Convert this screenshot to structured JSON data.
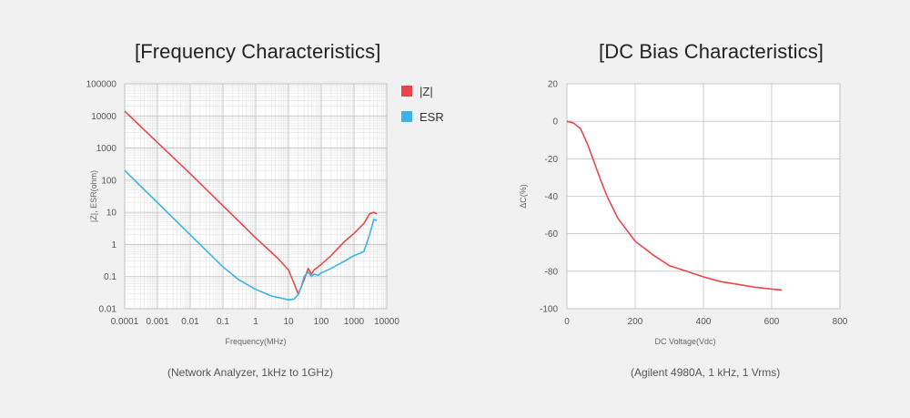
{
  "chart_data": [
    {
      "type": "line",
      "title": "[Frequency Characteristics]",
      "caption": "(Network Analyzer, 1kHz to 1GHz)",
      "xlabel": "Frequency(MHz)",
      "ylabel": "|Z|, ESR(ohm)",
      "xscale": "log",
      "yscale": "log",
      "xlim": [
        0.0001,
        10000
      ],
      "ylim": [
        0.01,
        100000
      ],
      "xticks": [
        "0.0001",
        "0.001",
        "0.01",
        "0.1",
        "1",
        "10",
        "100",
        "1000",
        "10000"
      ],
      "yticks": [
        "0.01",
        "0.1",
        "1",
        "10",
        "100",
        "1000",
        "10000",
        "100000"
      ],
      "grid": true,
      "legend": "top-right",
      "series": [
        {
          "name": "|Z|",
          "color": "#e8474c",
          "x": [
            0.0001,
            0.001,
            0.01,
            0.1,
            1,
            5,
            10,
            15,
            20,
            30,
            40,
            50,
            60,
            80,
            100,
            200,
            500,
            1000,
            2000,
            3000,
            4000,
            5000
          ],
          "y": [
            14000,
            1500,
            160,
            16,
            1.6,
            0.35,
            0.16,
            0.06,
            0.028,
            0.08,
            0.18,
            0.12,
            0.16,
            0.2,
            0.24,
            0.45,
            1.2,
            2.2,
            4.5,
            9,
            10,
            9
          ]
        },
        {
          "name": "ESR",
          "color": "#3ab4e6",
          "x": [
            0.0001,
            0.001,
            0.01,
            0.1,
            0.3,
            1,
            3,
            10,
            15,
            20,
            25,
            30,
            40,
            50,
            60,
            80,
            100,
            200,
            500,
            1000,
            2000,
            3000,
            4000,
            5000
          ],
          "y": [
            200,
            20,
            2,
            0.2,
            0.08,
            0.04,
            0.025,
            0.019,
            0.02,
            0.028,
            0.05,
            0.1,
            0.14,
            0.1,
            0.12,
            0.11,
            0.13,
            0.18,
            0.3,
            0.45,
            0.6,
            2,
            6,
            5.5
          ]
        }
      ]
    },
    {
      "type": "line",
      "title": "[DC Bias Characteristics]",
      "caption": "(Agilent 4980A, 1 kHz, 1 Vrms)",
      "xlabel": "DC Voltage(Vdc)",
      "ylabel": "ΔC(%)",
      "xlim": [
        0,
        800
      ],
      "ylim": [
        -100,
        20
      ],
      "xticks": [
        "0",
        "200",
        "400",
        "600",
        "800"
      ],
      "yticks": [
        "20",
        "0",
        "-20",
        "-40",
        "-60",
        "-80",
        "-100"
      ],
      "grid": true,
      "series": [
        {
          "color": "#e8474c",
          "x": [
            0,
            20,
            40,
            60,
            80,
            100,
            120,
            150,
            200,
            250,
            300,
            350,
            400,
            450,
            500,
            550,
            600,
            630
          ],
          "y": [
            0,
            -1,
            -4,
            -12,
            -22,
            -32,
            -41,
            -52,
            -64,
            -71,
            -77,
            -80,
            -83,
            -85.5,
            -87,
            -88.5,
            -89.5,
            -90
          ]
        }
      ]
    }
  ]
}
